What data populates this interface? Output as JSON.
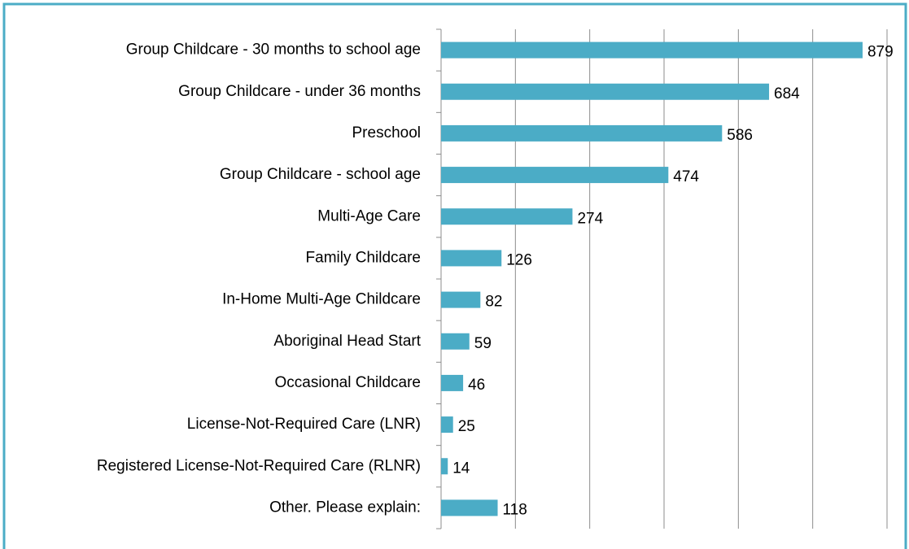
{
  "chart_data": {
    "type": "bar",
    "orientation": "horizontal",
    "categories": [
      "Group Childcare - 30 months to school age",
      "Group Childcare - under 36 months",
      "Preschool",
      "Group Childcare - school age",
      "Multi-Age Care",
      "Family Childcare",
      "In-Home Multi-Age Childcare",
      "Aboriginal Head Start",
      "Occasional Childcare",
      "License-Not-Required Care (LNR)",
      "Registered License-Not-Required Care (RLNR)",
      "Other. Please explain:"
    ],
    "values": [
      879,
      684,
      586,
      474,
      274,
      126,
      82,
      59,
      46,
      25,
      14,
      118
    ],
    "color": "#4bacc6",
    "xlim": [
      0,
      930
    ],
    "xticks": [
      0,
      155,
      310,
      465,
      620,
      775,
      930
    ],
    "grid": true
  }
}
